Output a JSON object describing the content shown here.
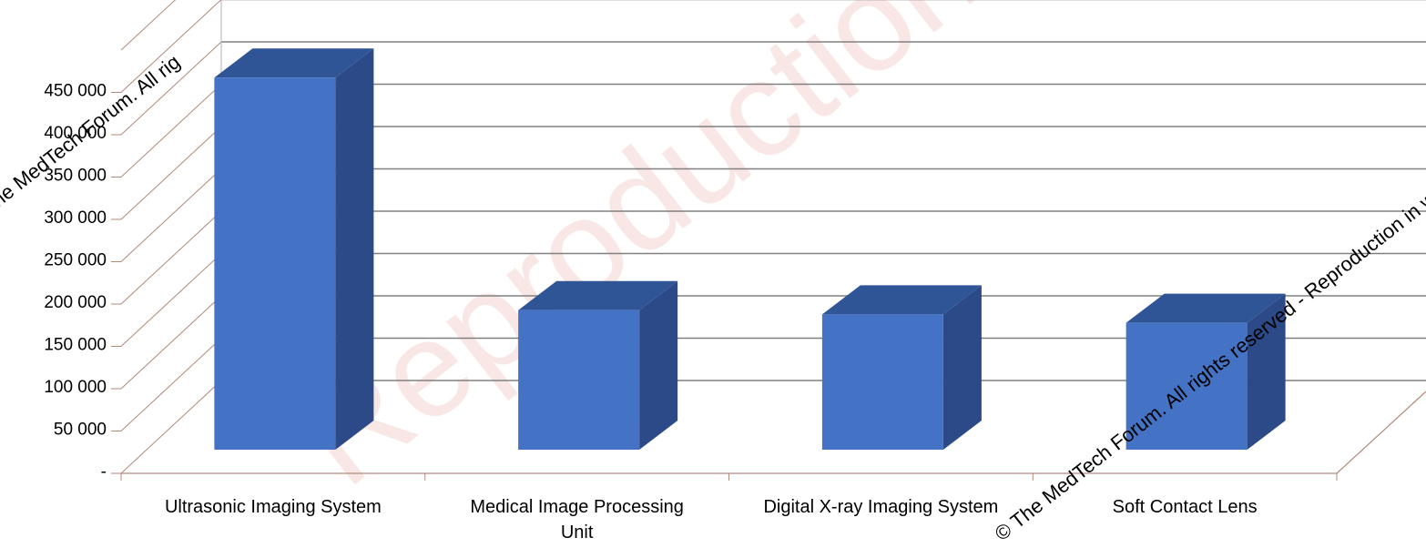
{
  "chart_data": {
    "type": "bar",
    "style": "3d-column",
    "title": "",
    "xlabel": "",
    "ylabel": "",
    "categories": [
      [
        "Ultrasonic Imaging System"
      ],
      [
        "Medical Image Processing",
        "Unit"
      ],
      [
        "Digital X-ray Imaging System"
      ],
      [
        "Soft Contact Lens"
      ]
    ],
    "values": [
      440000,
      165000,
      160000,
      150000
    ],
    "ylim": [
      0,
      450000
    ],
    "yticks": [
      0,
      50000,
      100000,
      150000,
      200000,
      250000,
      300000,
      350000,
      400000,
      450000
    ],
    "ytick_labels": [
      "-",
      "50 000",
      "100 000",
      "150 000",
      "200 000",
      "250 000",
      "300 000",
      "350 000",
      "400 000",
      "450 000"
    ],
    "grid": true,
    "legend": "none",
    "colors": {
      "bar_front": "#4472c4",
      "bar_top": "#2f5597",
      "bar_side": "#2c4a87",
      "gridline": "#808080",
      "floor_line": "#b08a7a"
    }
  },
  "watermark": {
    "diagonal_line_1": "© The MedTech Forum. All rights reserved - Reproduction in whole",
    "diagonal_line_2": "© The MedTech Forum. All rig",
    "faint_text": "Reproduction in whole or in part is prohibited"
  }
}
